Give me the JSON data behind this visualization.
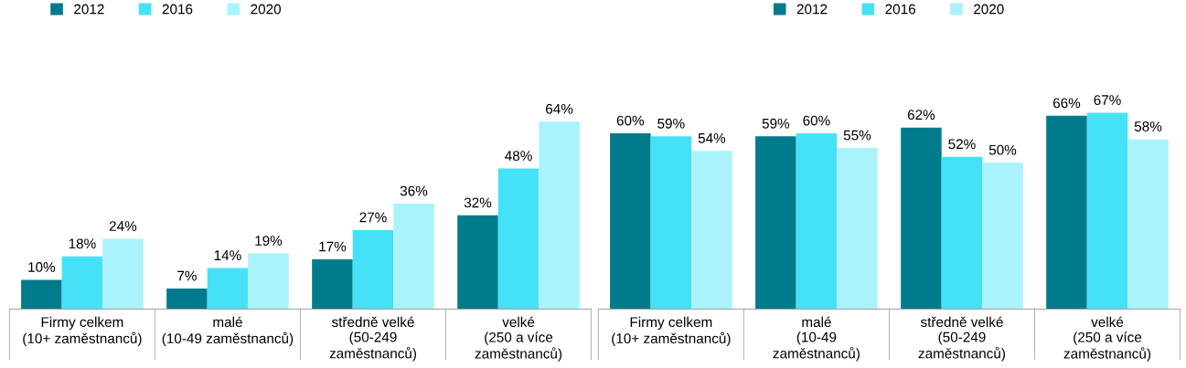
{
  "chart_data": [
    {
      "type": "bar",
      "categories": [
        "Firmy celkem\n(10+ zaměstnanců)",
        "malé\n(10-49 zaměstnanců)",
        "středně velké\n(50-249\nzaměstnanců)",
        "velké\n(250 a více\nzaměstnanců)"
      ],
      "series": [
        {
          "name": "2012",
          "color": "#007b8c",
          "values": [
            10,
            7,
            17,
            32
          ],
          "value_labels": [
            "10%",
            "7%",
            "17%",
            "32%"
          ]
        },
        {
          "name": "2016",
          "color": "#45e2f7",
          "values": [
            18,
            14,
            27,
            48
          ],
          "value_labels": [
            "18%",
            "14%",
            "27%",
            "48%"
          ]
        },
        {
          "name": "2020",
          "color": "#aaf3fc",
          "values": [
            24,
            19,
            36,
            64
          ],
          "value_labels": [
            "24%",
            "19%",
            "36%",
            "64%"
          ]
        }
      ],
      "tick_labels": "x",
      "legend": "top left"
    },
    {
      "type": "bar",
      "categories": [
        "Firmy celkem\n(10+ zaměstnanců)",
        "malé\n(10-49\nzaměstnanců)",
        "středně velké\n(50-249\nzaměstnanců)",
        "velké\n(250 a více\nzaměstnanců)"
      ],
      "series": [
        {
          "name": "2012",
          "color": "#007b8c",
          "values": [
            60,
            59,
            62,
            66
          ],
          "value_labels": [
            "60%",
            "59%",
            "62%",
            "66%"
          ]
        },
        {
          "name": "2016",
          "color": "#45e2f7",
          "values": [
            59,
            60,
            52,
            67
          ],
          "value_labels": [
            "59%",
            "60%",
            "52%",
            "67%"
          ]
        },
        {
          "name": "2020",
          "color": "#aaf3fc",
          "values": [
            54,
            55,
            50,
            58
          ],
          "value_labels": [
            "54%",
            "55%",
            "50%",
            "58%"
          ]
        }
      ],
      "tick_labels": "x",
      "legend": "top"
    }
  ]
}
